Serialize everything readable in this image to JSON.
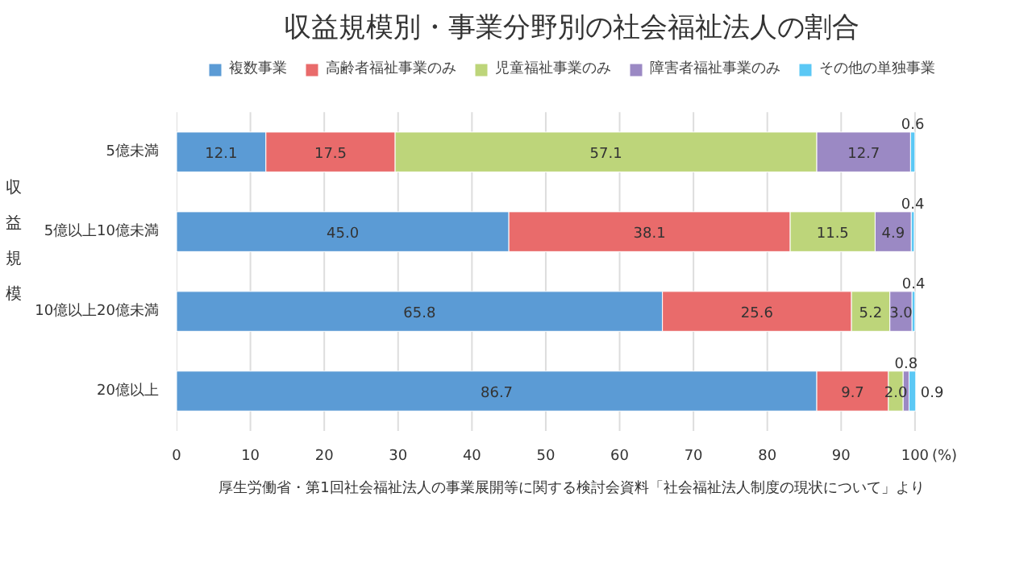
{
  "chart_data": {
    "type": "bar",
    "orientation": "horizontal",
    "stacked": true,
    "title": "収益規模別・事業分野別の社会福祉法人の割合",
    "ylabel": "収益規模",
    "xlabel": "(%)",
    "categories": [
      "5億未満",
      "5億以上10億未満",
      "10億以上20億未満",
      "20億以上"
    ],
    "series": [
      {
        "name": "複数事業",
        "color": "#5b9bd5",
        "values": [
          12.1,
          45.0,
          65.8,
          86.7
        ],
        "value_labels": [
          "12.1",
          "45.0",
          "65.8",
          "86.7"
        ]
      },
      {
        "name": "高齢者福祉事業のみ",
        "color": "#e96b6b",
        "values": [
          17.5,
          38.1,
          25.6,
          9.7
        ],
        "value_labels": [
          "17.5",
          "38.1",
          "25.6",
          "9.7"
        ]
      },
      {
        "name": "児童福祉事業のみ",
        "color": "#bdd57a",
        "values": [
          57.1,
          11.5,
          5.2,
          2.0
        ],
        "value_labels": [
          "57.1",
          "11.5",
          "5.2",
          "2.0"
        ]
      },
      {
        "name": "障害者福祉事業のみ",
        "color": "#9b89c4",
        "values": [
          12.7,
          4.9,
          3.0,
          0.8
        ],
        "value_labels": [
          "12.7",
          "4.9",
          "3.0",
          "0.8"
        ]
      },
      {
        "name": "その他の単独事業",
        "color": "#5bc8f5",
        "values": [
          0.6,
          0.4,
          0.4,
          0.9
        ],
        "value_labels": [
          "0.6",
          "0.4",
          "0.4",
          "0.9"
        ]
      }
    ],
    "xlim": [
      0,
      100
    ],
    "xticks": [
      0,
      10,
      20,
      30,
      40,
      50,
      60,
      70,
      80,
      90,
      100
    ],
    "grid": "x",
    "legend": "top",
    "annotations": [
      "厚生労働省・第1回社会福祉法人の事業展開等に関する検討会資料「社会福祉法人制度の現状について」より"
    ]
  }
}
